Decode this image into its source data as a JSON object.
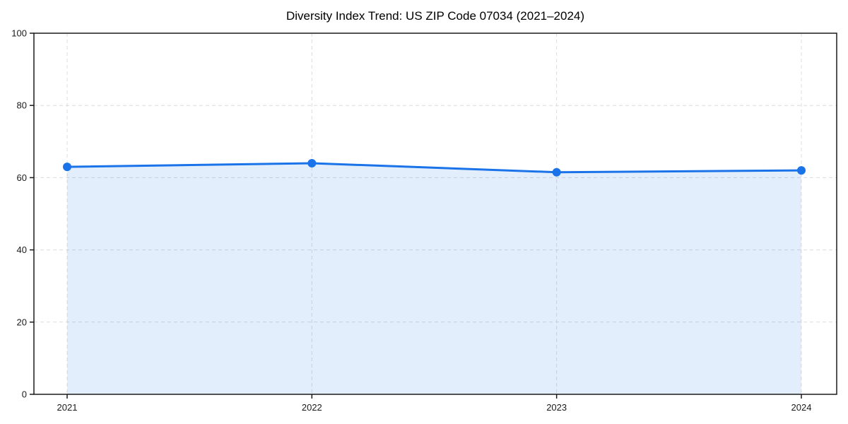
{
  "page": {
    "background": "#ffffff"
  },
  "chart_data": {
    "type": "area",
    "title": "Diversity Index Trend: US ZIP Code 07034 (2021–2024)",
    "xlabel": "",
    "ylabel": "",
    "categories": [
      "2021",
      "2022",
      "2023",
      "2024"
    ],
    "series": [
      {
        "name": "Diversity Index",
        "values": [
          63,
          64,
          61.5,
          62
        ]
      }
    ],
    "ylim": [
      0,
      100
    ],
    "yticks": [
      0,
      20,
      40,
      60,
      80,
      100
    ],
    "grid": true,
    "grid_style": "dashed",
    "legend_position": "none",
    "marker": "circle",
    "colors": {
      "line": "#1a73e8",
      "fill": "rgba(26,115,232,0.12)",
      "grid": "#dcdcdc",
      "spine": "#1a1a1a",
      "tick_label": "#1a1a1a",
      "title": "#000000",
      "background": "#ffffff"
    }
  }
}
